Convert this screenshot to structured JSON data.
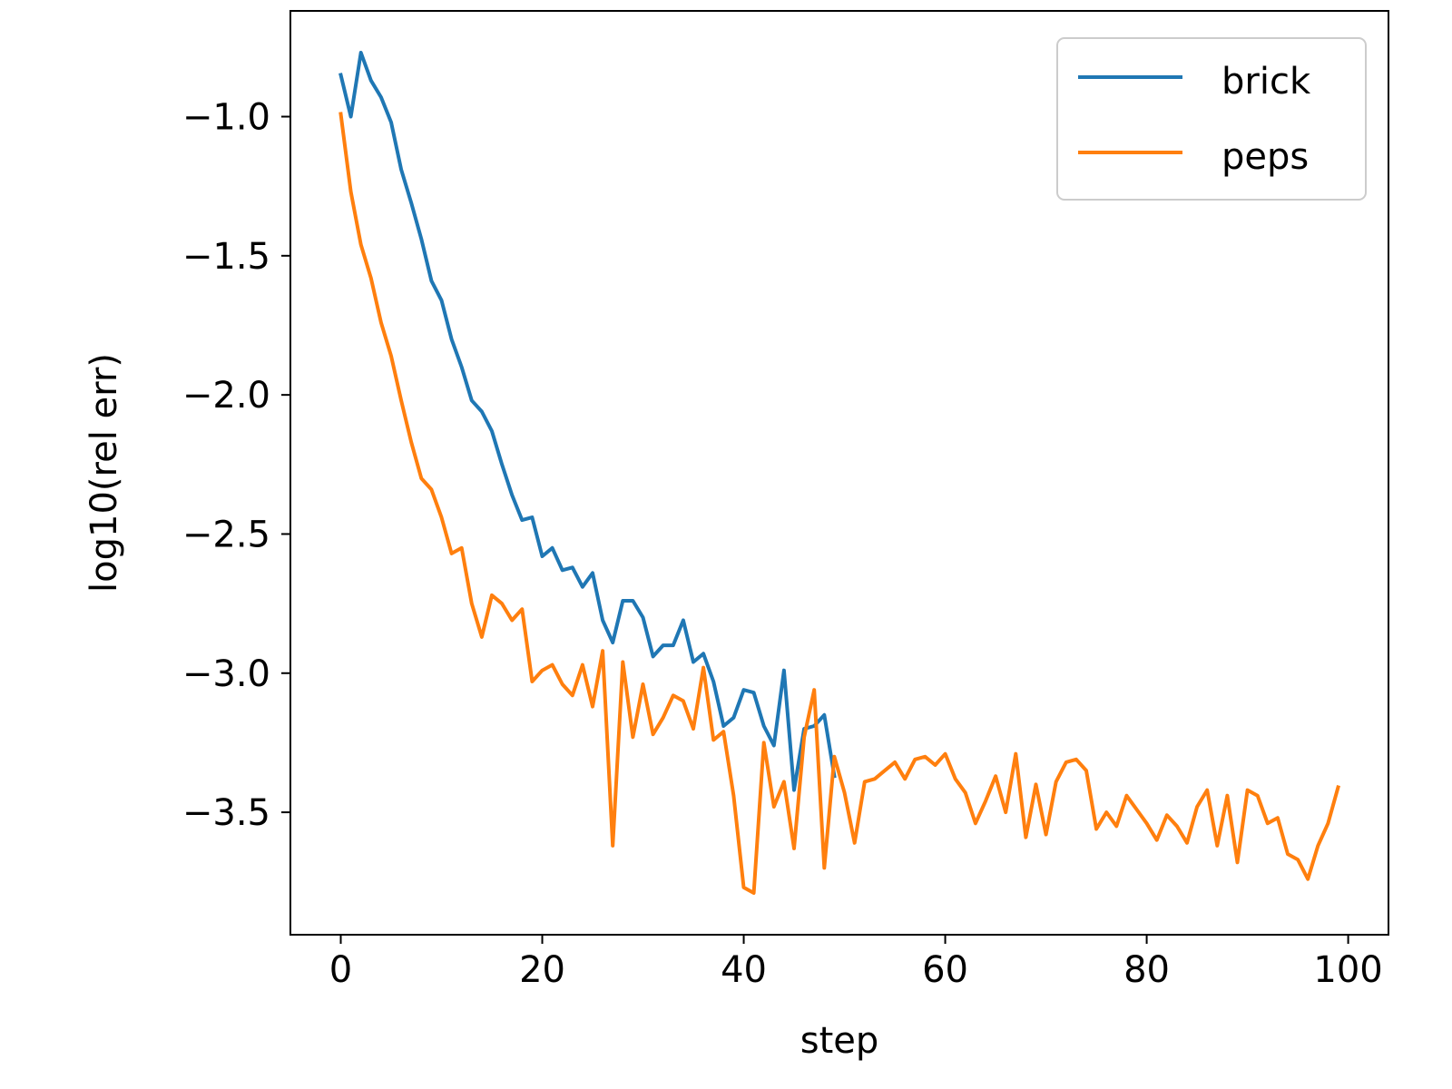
{
  "chart_data": {
    "type": "line",
    "title": "",
    "xlabel": "step",
    "ylabel": "log10(rel err)",
    "xlim": [
      -5,
      104
    ],
    "ylim": [
      -3.94,
      -0.62
    ],
    "x_ticks": [
      0,
      20,
      40,
      60,
      80,
      100
    ],
    "x_tick_labels": [
      "0",
      "20",
      "40",
      "60",
      "80",
      "100"
    ],
    "y_ticks": [
      -1.0,
      -1.5,
      -2.0,
      -2.5,
      -3.0,
      -3.5
    ],
    "y_tick_labels": [
      "−1.0",
      "−1.5",
      "−2.0",
      "−2.5",
      "−3.0",
      "−3.5"
    ],
    "grid": false,
    "legend_position": "top-right",
    "series": [
      {
        "name": "brick",
        "color": "#1f77b4",
        "x": [
          0,
          1,
          2,
          3,
          4,
          5,
          6,
          7,
          8,
          9,
          10,
          11,
          12,
          13,
          14,
          15,
          16,
          17,
          18,
          19,
          20,
          21,
          22,
          23,
          24,
          25,
          26,
          27,
          28,
          29,
          30,
          31,
          32,
          33,
          34,
          35,
          36,
          37,
          38,
          39,
          40,
          41,
          42,
          43,
          44,
          45,
          46,
          47,
          48,
          49
        ],
        "values": [
          -0.85,
          -1.0,
          -0.77,
          -0.87,
          -0.93,
          -1.02,
          -1.19,
          -1.31,
          -1.44,
          -1.59,
          -1.66,
          -1.8,
          -1.9,
          -2.02,
          -2.06,
          -2.13,
          -2.25,
          -2.36,
          -2.45,
          -2.44,
          -2.58,
          -2.55,
          -2.63,
          -2.62,
          -2.69,
          -2.64,
          -2.81,
          -2.89,
          -2.74,
          -2.74,
          -2.8,
          -2.94,
          -2.9,
          -2.9,
          -2.81,
          -2.96,
          -2.93,
          -3.03,
          -3.19,
          -3.16,
          -3.06,
          -3.07,
          -3.19,
          -3.26,
          -2.99,
          -3.42,
          -3.2,
          -3.19,
          -3.15,
          -3.37
        ]
      },
      {
        "name": "peps",
        "color": "#ff7f0e",
        "x": [
          0,
          1,
          2,
          3,
          4,
          5,
          6,
          7,
          8,
          9,
          10,
          11,
          12,
          13,
          14,
          15,
          16,
          17,
          18,
          19,
          20,
          21,
          22,
          23,
          24,
          25,
          26,
          27,
          28,
          29,
          30,
          31,
          32,
          33,
          34,
          35,
          36,
          37,
          38,
          39,
          40,
          41,
          42,
          43,
          44,
          45,
          46,
          47,
          48,
          49,
          50,
          51,
          52,
          53,
          54,
          55,
          56,
          57,
          58,
          59,
          60,
          61,
          62,
          63,
          64,
          65,
          66,
          67,
          68,
          69,
          70,
          71,
          72,
          73,
          74,
          75,
          76,
          77,
          78,
          79,
          80,
          81,
          82,
          83,
          84,
          85,
          86,
          87,
          88,
          89,
          90,
          91,
          92,
          93,
          94,
          95,
          96,
          97,
          98,
          99
        ],
        "values": [
          -0.99,
          -1.27,
          -1.46,
          -1.58,
          -1.74,
          -1.86,
          -2.02,
          -2.17,
          -2.3,
          -2.34,
          -2.44,
          -2.57,
          -2.55,
          -2.75,
          -2.87,
          -2.72,
          -2.75,
          -2.81,
          -2.77,
          -3.03,
          -2.99,
          -2.97,
          -3.04,
          -3.08,
          -2.97,
          -3.12,
          -2.92,
          -3.62,
          -2.96,
          -3.23,
          -3.04,
          -3.22,
          -3.16,
          -3.08,
          -3.1,
          -3.2,
          -2.98,
          -3.24,
          -3.21,
          -3.44,
          -3.77,
          -3.79,
          -3.25,
          -3.48,
          -3.39,
          -3.63,
          -3.23,
          -3.06,
          -3.7,
          -3.3,
          -3.43,
          -3.61,
          -3.39,
          -3.38,
          -3.35,
          -3.32,
          -3.38,
          -3.31,
          -3.3,
          -3.33,
          -3.29,
          -3.38,
          -3.43,
          -3.54,
          -3.46,
          -3.37,
          -3.5,
          -3.29,
          -3.59,
          -3.4,
          -3.58,
          -3.39,
          -3.32,
          -3.31,
          -3.35,
          -3.56,
          -3.5,
          -3.55,
          -3.44,
          -3.49,
          -3.54,
          -3.6,
          -3.51,
          -3.55,
          -3.61,
          -3.48,
          -3.42,
          -3.62,
          -3.44,
          -3.68,
          -3.42,
          -3.44,
          -3.54,
          -3.52,
          -3.65,
          -3.67,
          -3.74,
          -3.62,
          -3.54,
          -3.41
        ]
      }
    ]
  }
}
